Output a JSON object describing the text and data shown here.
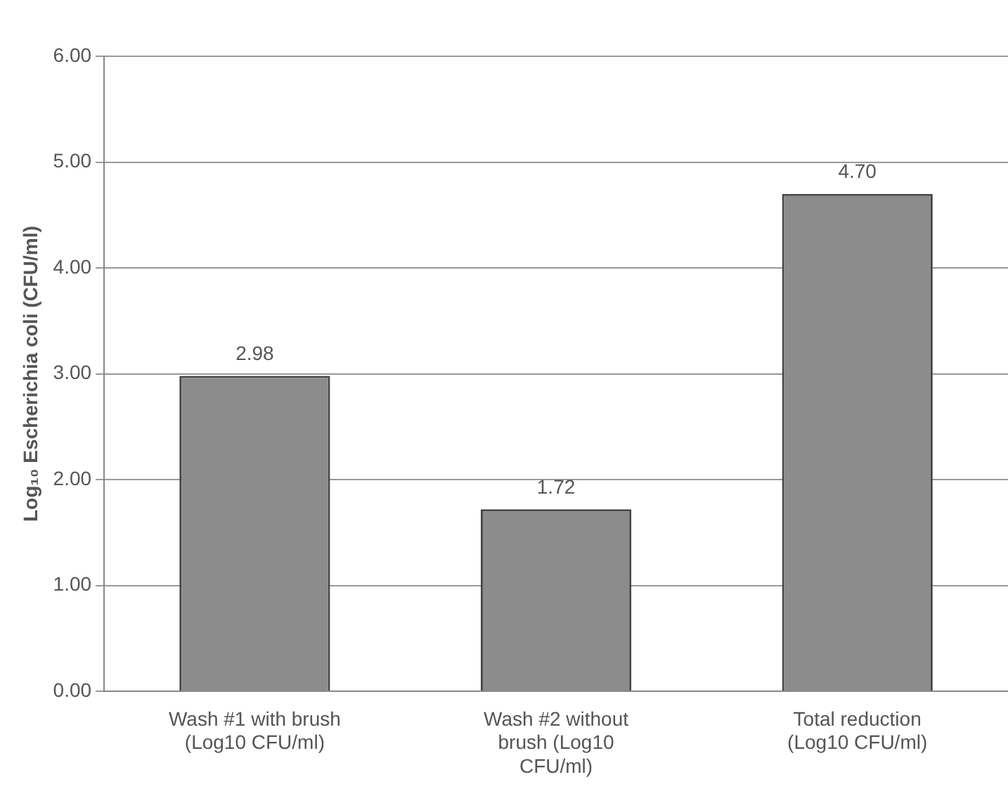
{
  "chart_data": {
    "type": "bar",
    "ylabel": "Log₁₀ Escherichia coli (CFU/ml)",
    "categories": [
      "Wash #1 with brush (Log10 CFU/ml)",
      "Wash #2 without brush (Log10 CFU/ml)",
      "Total reduction (Log10 CFU/ml)"
    ],
    "values": [
      2.98,
      1.72,
      4.7
    ],
    "value_labels": [
      "2.98",
      "1.72",
      "4.70"
    ],
    "color": "#8c8c8c",
    "ylim": [
      0,
      6
    ],
    "yticks": [
      {
        "value": 0,
        "label": "0.00"
      },
      {
        "value": 1,
        "label": "1.00"
      },
      {
        "value": 2,
        "label": "2.00"
      },
      {
        "value": 3,
        "label": "3.00"
      },
      {
        "value": 4,
        "label": "4.00"
      },
      {
        "value": 5,
        "label": "5.00"
      },
      {
        "value": 6,
        "label": "6.00"
      }
    ],
    "grid": "y",
    "legend": false
  }
}
